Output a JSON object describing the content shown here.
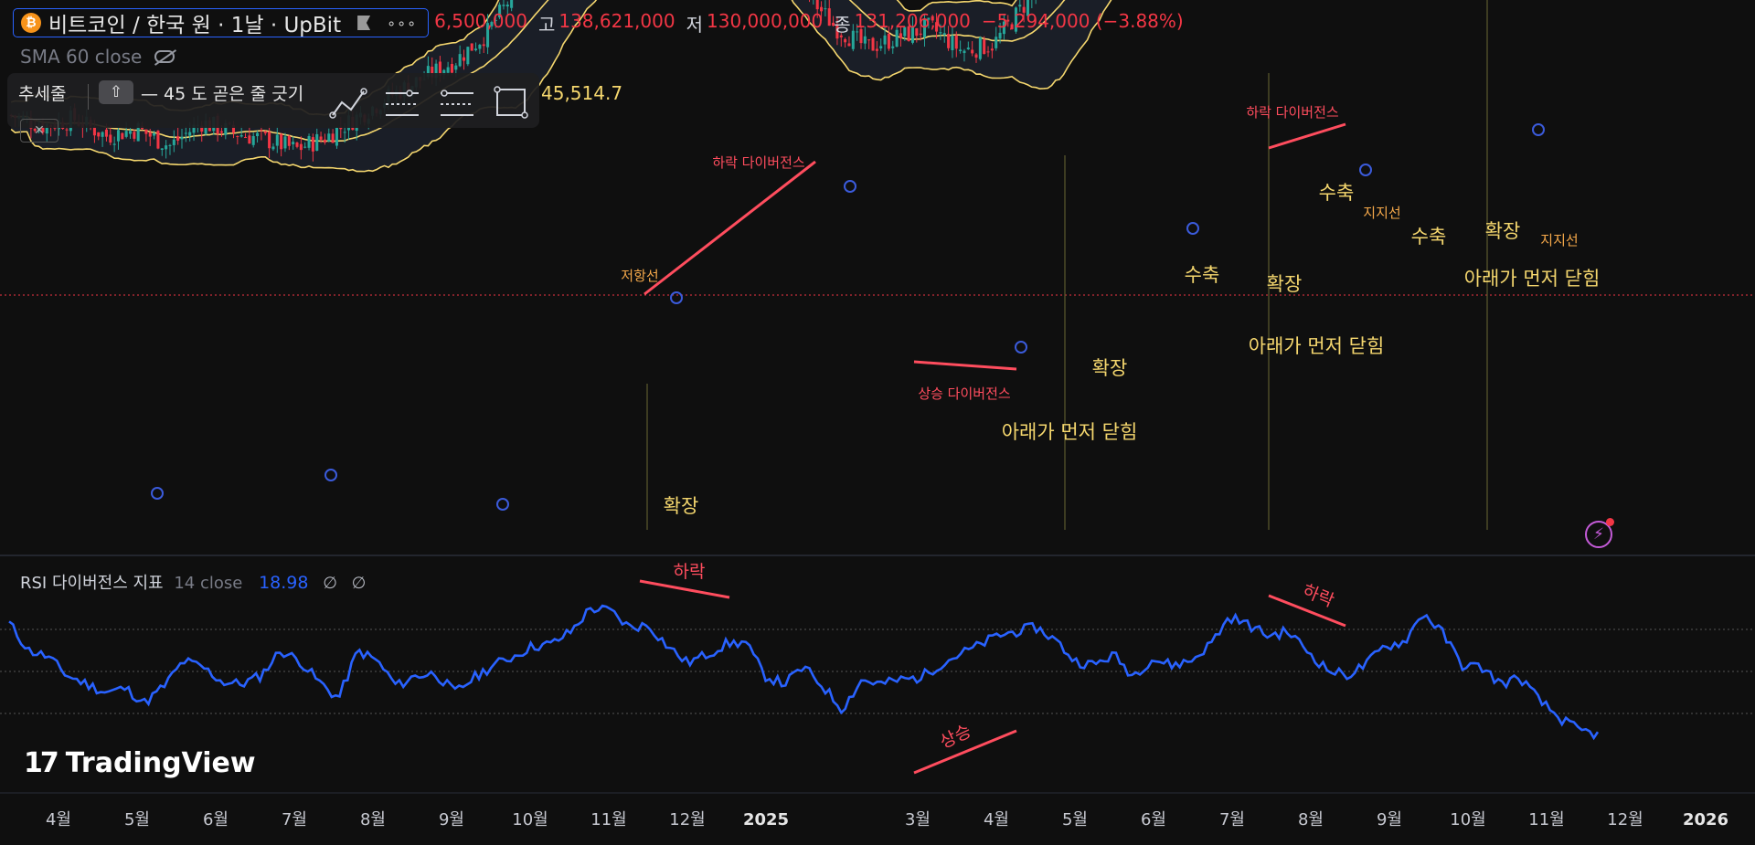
{
  "header": {
    "symbol_title": "비트코인 / 한국 원 · 1날 · UpBit",
    "more_label": "∘∘∘",
    "open_value": "6,500,000",
    "high_label": "고",
    "high_value": "138,621,000",
    "low_label": "저",
    "low_value": "130,000,000",
    "close_label": "종",
    "close_value": "131,206,000",
    "change": "−5,294,000 (−3.88%)"
  },
  "sma_legend": {
    "label": "SMA 60 close"
  },
  "toolbar": {
    "tool_name": "추세줄",
    "shift_key": "⇧",
    "hint": "— 45 도 곧은 줄 긋기",
    "icons": [
      "trend-angle-icon",
      "parallel-channel-icon",
      "pitchfork-icon",
      "rectangle-icon"
    ]
  },
  "bollinger_value": "45,514.7",
  "rsi_legend": {
    "title": "RSI 다이버전스 지표",
    "params": "14 close",
    "value": "18.98",
    "na1": "∅",
    "na2": "∅"
  },
  "branding": {
    "logo_text": "TradingView"
  },
  "colors": {
    "up": "#26a69a",
    "down": "#f23645",
    "bands": "#f5d76e",
    "rsi": "#2962ff",
    "divergence": "#ff4d5e",
    "annotation": "#f5d76e"
  },
  "chart_data": [
    {
      "type": "candlestick",
      "x_ticks": [
        "4월",
        "5월",
        "6월",
        "7월",
        "8월",
        "9월",
        "10월",
        "11월",
        "12월",
        "2025",
        "3월",
        "4월",
        "5월",
        "6월",
        "7월",
        "8월",
        "9월",
        "10월",
        "11월",
        "12월",
        "2026"
      ],
      "close_anchors": [
        130,
        127,
        129,
        124,
        126,
        121,
        128,
        125,
        123,
        120,
        124,
        130,
        136,
        141,
        146,
        154,
        168,
        178,
        182,
        176,
        181,
        190,
        198,
        193,
        178,
        167,
        156,
        150,
        153,
        156,
        149,
        151,
        163,
        175,
        182,
        187,
        185,
        180,
        176,
        190,
        201,
        205,
        201,
        195,
        200,
        209,
        217,
        212,
        197,
        187,
        177
      ],
      "last_close": 131206000,
      "annotations": [
        {
          "text": "확장"
        },
        {
          "text": "저항선"
        },
        {
          "text": "하락 다이버전스"
        },
        {
          "text": "상승 다이버전스"
        },
        {
          "text": "아래가 먼저 닫힘"
        },
        {
          "text": "확장"
        },
        {
          "text": "수축"
        },
        {
          "text": "확장"
        },
        {
          "text": "아래가 먼저 닫힘"
        },
        {
          "text": "하락 다이버전스"
        },
        {
          "text": "수축"
        },
        {
          "text": "지지선"
        },
        {
          "text": "수축"
        },
        {
          "text": "확장"
        },
        {
          "text": "지지선"
        },
        {
          "text": "아래가 먼저 닫힘"
        }
      ]
    },
    {
      "type": "line",
      "series": [
        {
          "name": "RSI",
          "values": [
            73,
            60,
            57,
            48,
            44,
            40,
            42,
            35,
            43,
            55,
            52,
            45,
            44,
            48,
            60,
            55,
            45,
            37,
            60,
            55,
            43,
            48,
            49,
            40,
            47,
            53,
            57,
            62,
            63,
            69,
            80,
            79,
            71,
            72,
            62,
            54,
            58,
            63,
            64,
            48,
            44,
            52,
            43,
            32,
            46,
            44,
            46,
            47,
            53,
            58,
            62,
            67,
            69,
            71,
            65,
            55,
            53,
            58,
            48,
            56,
            53,
            55,
            63,
            76,
            72,
            67,
            69,
            60,
            51,
            48,
            53,
            62,
            64,
            78,
            68,
            53,
            52,
            44,
            47,
            36,
            28,
            22,
            20
          ]
        }
      ],
      "ylim": [
        0,
        100
      ],
      "levels": [
        70,
        50,
        30
      ],
      "annotations": [
        {
          "text": "하락"
        },
        {
          "text": "상승"
        },
        {
          "text": "하락"
        }
      ]
    }
  ]
}
